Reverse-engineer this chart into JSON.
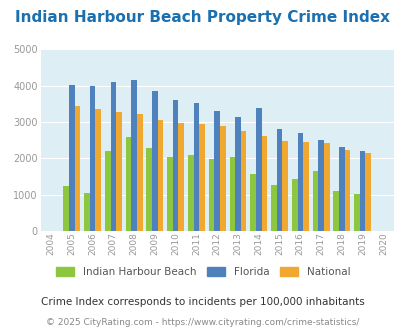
{
  "title": "Indian Harbour Beach Property Crime Index",
  "bar_years": [
    2005,
    2006,
    2007,
    2008,
    2009,
    2010,
    2011,
    2012,
    2013,
    2014,
    2015,
    2016,
    2017,
    2018,
    2019
  ],
  "bar_ihb": [
    1250,
    1050,
    2200,
    2600,
    2300,
    2050,
    2080,
    1980,
    2030,
    1560,
    1260,
    1430,
    1640,
    1100,
    1010
  ],
  "bar_florida": [
    4020,
    4000,
    4100,
    4150,
    3850,
    3600,
    3520,
    3300,
    3130,
    3400,
    2820,
    2700,
    2510,
    2310,
    2200
  ],
  "bar_national": [
    3450,
    3350,
    3270,
    3230,
    3060,
    2970,
    2960,
    2900,
    2760,
    2610,
    2490,
    2460,
    2420,
    2240,
    2160
  ],
  "all_tick_years": [
    2004,
    2005,
    2006,
    2007,
    2008,
    2009,
    2010,
    2011,
    2012,
    2013,
    2014,
    2015,
    2016,
    2017,
    2018,
    2019,
    2020
  ],
  "colors": {
    "ihb": "#8dc63f",
    "florida": "#4f81bd",
    "national": "#f0a830"
  },
  "ylim": [
    0,
    5000
  ],
  "yticks": [
    0,
    1000,
    2000,
    3000,
    4000,
    5000
  ],
  "plot_bg": "#ddeef5",
  "legend_labels": [
    "Indian Harbour Beach",
    "Florida",
    "National"
  ],
  "footnote1": "Crime Index corresponds to incidents per 100,000 inhabitants",
  "footnote2": "© 2025 CityRating.com - https://www.cityrating.com/crime-statistics/",
  "title_color": "#1a70b0",
  "tick_color": "#999999",
  "footnote1_color": "#333333",
  "footnote2_color": "#888888",
  "grid_color": "#ffffff",
  "bar_width": 0.27,
  "title_fontsize": 11,
  "tick_fontsize": 6.5,
  "ytick_fontsize": 7,
  "legend_fontsize": 7.5,
  "footnote1_fontsize": 7.5,
  "footnote2_fontsize": 6.5
}
